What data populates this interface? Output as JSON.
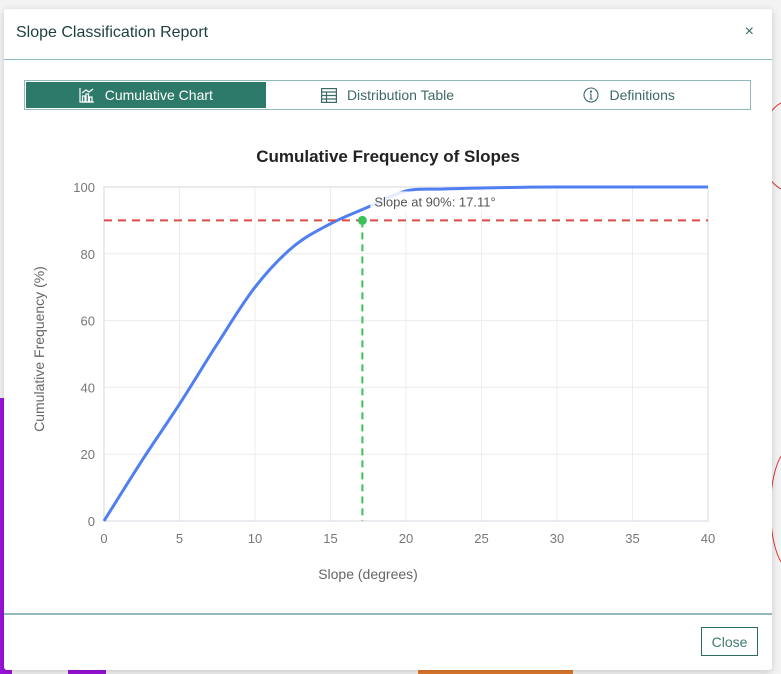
{
  "dialog": {
    "title": "Slope Classification Report",
    "close_icon": "×",
    "footer": {
      "close_label": "Close"
    }
  },
  "tabs": [
    {
      "label": "Cumulative Chart",
      "icon": "chart-icon",
      "active": true
    },
    {
      "label": "Distribution Table",
      "icon": "table-icon",
      "active": false
    },
    {
      "label": "Definitions",
      "icon": "info-icon",
      "active": false
    }
  ],
  "colors": {
    "accent": "#2e7a6a",
    "curve": "#4f7ff0",
    "threshold_line": "#e04a4a",
    "marker_line": "#3cc15a",
    "grid": "#ececec"
  },
  "chart_data": {
    "type": "line",
    "title": "Cumulative Frequency of Slopes",
    "xlabel": "Slope (degrees)",
    "ylabel": "Cumulative Frequency (%)",
    "xlim": [
      0,
      40
    ],
    "ylim": [
      0,
      100
    ],
    "xticks": [
      0,
      5,
      10,
      15,
      20,
      25,
      30,
      35,
      40
    ],
    "yticks": [
      0,
      20,
      40,
      60,
      80,
      100
    ],
    "grid": true,
    "series": [
      {
        "name": "Cumulative Frequency",
        "x": [
          0,
          2.5,
          5,
          7.5,
          10,
          12.5,
          15,
          17.5,
          20,
          22.5,
          25,
          27.5,
          30,
          35,
          40
        ],
        "values": [
          0,
          18,
          35,
          53,
          70,
          82,
          89,
          94,
          98.8,
          99.4,
          99.7,
          99.9,
          100,
          100,
          100
        ]
      }
    ],
    "annotations": [
      {
        "type": "hline",
        "y": 90,
        "style": "dashed",
        "color": "#e04a4a"
      },
      {
        "type": "vline",
        "x": 17.11,
        "y_to": 90,
        "style": "dashed",
        "color": "#3cc15a"
      },
      {
        "type": "point",
        "x": 17.11,
        "y": 90,
        "color": "#3cc15a"
      },
      {
        "type": "label",
        "text": "Slope at 90%: 17.11°",
        "x": 17.11,
        "y": 90
      }
    ]
  }
}
